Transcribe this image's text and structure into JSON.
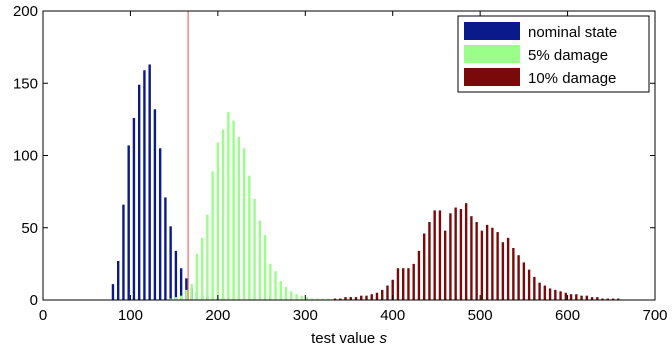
{
  "chart_data": {
    "type": "bar",
    "xlabel": "test value ",
    "xlabel_italic": "s",
    "xlim": [
      0,
      700
    ],
    "ylim": [
      0,
      200
    ],
    "xticks": [
      0,
      100,
      200,
      300,
      400,
      500,
      600,
      700
    ],
    "yticks": [
      0,
      50,
      100,
      150,
      200
    ],
    "grid": false,
    "legend_position": "top-right",
    "threshold_line": {
      "x": 166,
      "color": "#ff6666"
    },
    "series": [
      {
        "name": "nominal state",
        "color": "#0a1a8a",
        "x": [
          80,
          86,
          92,
          98,
          104,
          110,
          116,
          122,
          128,
          134,
          140,
          146,
          152,
          158,
          164,
          170,
          176,
          182,
          188,
          194,
          200,
          206
        ],
        "values": [
          11,
          27,
          66,
          107,
          126,
          149,
          159,
          163,
          132,
          105,
          71,
          51,
          34,
          22,
          15,
          8,
          5,
          3,
          2,
          1,
          1,
          1
        ]
      },
      {
        "name": "5% damage",
        "color": "#99ff88",
        "x": [
          146,
          152,
          158,
          164,
          170,
          176,
          182,
          188,
          194,
          200,
          206,
          212,
          218,
          224,
          230,
          236,
          242,
          248,
          254,
          260,
          266,
          272,
          278,
          284,
          290,
          296,
          302,
          308,
          314,
          320,
          326
        ],
        "values": [
          1,
          2,
          3,
          7,
          11,
          32,
          43,
          59,
          89,
          109,
          118,
          130,
          124,
          113,
          105,
          86,
          70,
          55,
          45,
          25,
          20,
          13,
          9,
          6,
          4,
          3,
          2,
          1,
          1,
          1,
          1
        ]
      },
      {
        "name": "10% damage",
        "color": "#7a0a0a",
        "x": [
          334,
          340,
          346,
          352,
          358,
          364,
          370,
          376,
          382,
          388,
          394,
          400,
          406,
          412,
          418,
          424,
          430,
          436,
          442,
          448,
          454,
          460,
          466,
          472,
          478,
          484,
          490,
          496,
          502,
          508,
          514,
          520,
          526,
          532,
          538,
          544,
          550,
          556,
          562,
          568,
          574,
          580,
          586,
          592,
          598,
          604,
          610,
          616,
          622,
          628,
          634,
          640,
          646,
          652,
          658
        ],
        "values": [
          1,
          1,
          2,
          2,
          2,
          3,
          3,
          4,
          5,
          7,
          10,
          14,
          22,
          22,
          22,
          25,
          34,
          46,
          54,
          62,
          62,
          48,
          60,
          64,
          63,
          67,
          58,
          54,
          48,
          52,
          50,
          47,
          40,
          43,
          36,
          31,
          26,
          21,
          16,
          12,
          10,
          8,
          7,
          6,
          5,
          4,
          4,
          3,
          3,
          2,
          2,
          1,
          1,
          1,
          1
        ]
      }
    ]
  }
}
